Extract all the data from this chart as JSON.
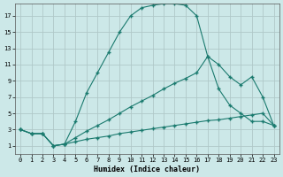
{
  "xlabel": "Humidex (Indice chaleur)",
  "bg_color": "#cce8e8",
  "grid_color": "#b0c8c8",
  "line_color": "#1a7a6e",
  "xlim": [
    -0.5,
    23.5
  ],
  "ylim": [
    0,
    18.5
  ],
  "xticks": [
    0,
    1,
    2,
    3,
    4,
    5,
    6,
    7,
    8,
    9,
    10,
    11,
    12,
    13,
    14,
    15,
    16,
    17,
    18,
    19,
    20,
    21,
    22,
    23
  ],
  "yticks": [
    1,
    3,
    5,
    7,
    9,
    11,
    13,
    15,
    17
  ],
  "series1_x": [
    0,
    1,
    2,
    3,
    4,
    5,
    6,
    7,
    8,
    9,
    10,
    11,
    12,
    13,
    14,
    15,
    16,
    17,
    18,
    19,
    20,
    21,
    22,
    23
  ],
  "series1_y": [
    3,
    2.5,
    2.5,
    1,
    1.2,
    4,
    7.5,
    10,
    12.5,
    15,
    17,
    18,
    18.3,
    18.5,
    18.5,
    18.3,
    17,
    12,
    8,
    6,
    5,
    4,
    4,
    3.5
  ],
  "series2_x": [
    0,
    1,
    2,
    3,
    4,
    5,
    6,
    7,
    8,
    9,
    10,
    11,
    12,
    13,
    14,
    15,
    16,
    17,
    18,
    19,
    20,
    21,
    22,
    23
  ],
  "series2_y": [
    3,
    2.5,
    2.5,
    1,
    1.2,
    2,
    2.8,
    3.5,
    4.2,
    5,
    5.8,
    6.5,
    7.2,
    8,
    8.7,
    9.3,
    10,
    12,
    11,
    9.5,
    8.5,
    9.5,
    7,
    3.5
  ],
  "series3_x": [
    0,
    1,
    2,
    3,
    4,
    5,
    6,
    7,
    8,
    9,
    10,
    11,
    12,
    13,
    14,
    15,
    16,
    17,
    18,
    19,
    20,
    21,
    22,
    23
  ],
  "series3_y": [
    3,
    2.5,
    2.5,
    1,
    1.2,
    1.5,
    1.8,
    2.0,
    2.2,
    2.5,
    2.7,
    2.9,
    3.1,
    3.3,
    3.5,
    3.7,
    3.9,
    4.1,
    4.2,
    4.4,
    4.6,
    4.8,
    5.0,
    3.5
  ]
}
